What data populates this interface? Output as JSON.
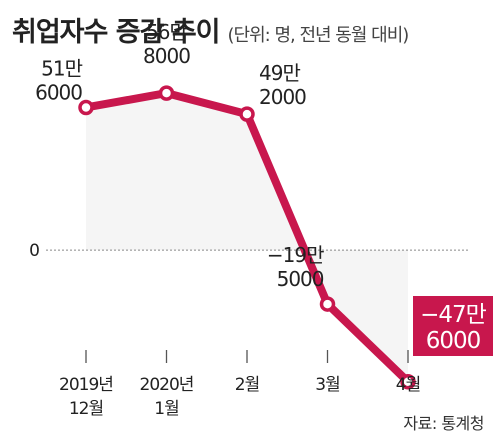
{
  "title": "취업자수 증감 추이",
  "unit_note": "(단위: 명, 전년 동월 대비)",
  "source": "자료: 통계청",
  "colors": {
    "line": "#c8174d",
    "highlight_box": "#c8174d",
    "text": "#222222",
    "axis": "#888888"
  },
  "chart_data": {
    "type": "line",
    "categories": [
      [
        "2019년",
        "12월"
      ],
      [
        "2020년",
        "1월"
      ],
      [
        "2월"
      ],
      [
        "3월"
      ],
      [
        "4월"
      ]
    ],
    "values": [
      516000,
      568000,
      492000,
      -195000,
      -476000
    ],
    "data_labels": [
      [
        "51만",
        "6000"
      ],
      [
        "56만",
        "8000"
      ],
      [
        "49만",
        "2000"
      ],
      [
        "−19만",
        "5000"
      ],
      [
        "−47만",
        "6000"
      ]
    ],
    "zero_label": "0",
    "ylim": [
      -560000,
      760000
    ],
    "highlight_index": 4,
    "grid": false,
    "legend": "none"
  }
}
